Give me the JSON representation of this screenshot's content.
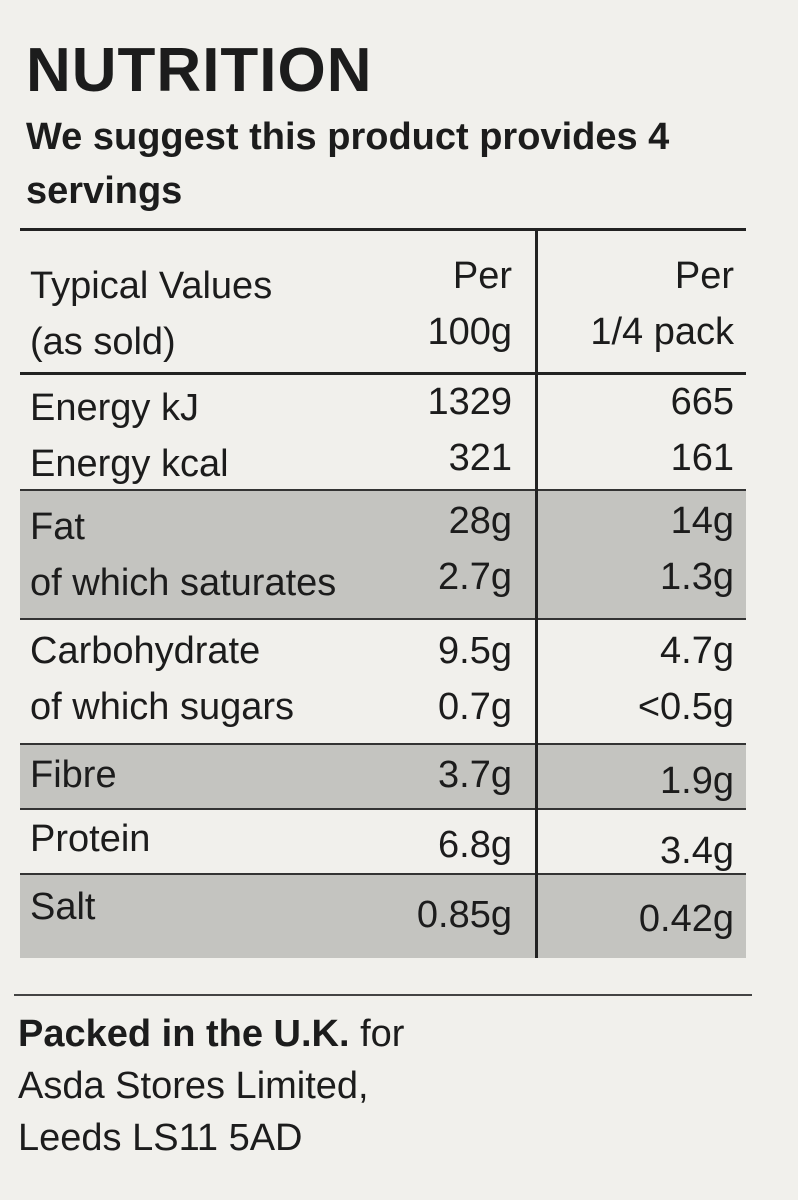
{
  "heading": {
    "title": "NUTRITION",
    "subtitle": "We suggest this product provides 4 servings"
  },
  "table": {
    "header": {
      "col1_line1": "Typical Values",
      "col1_line2": "(as sold)",
      "col2_line1": "Per",
      "col2_line2": "100g",
      "col3_line1": "Per",
      "col3_line2": "1/4 pack"
    },
    "rows": [
      {
        "name": "Energy kJ",
        "per100g": "1329",
        "perpack": "665"
      },
      {
        "name": "Energy kcal",
        "per100g": "321",
        "perpack": "161"
      },
      {
        "name": "Fat",
        "per100g": "28g",
        "perpack": "14g"
      },
      {
        "name": "of which saturates",
        "per100g": "2.7g",
        "perpack": "1.3g"
      },
      {
        "name": "Carbohydrate",
        "per100g": "9.5g",
        "perpack": "4.7g"
      },
      {
        "name": "of which sugars",
        "per100g": "0.7g",
        "perpack": "<0.5g"
      },
      {
        "name": "Fibre",
        "per100g": "3.7g",
        "perpack": "1.9g"
      },
      {
        "name": "Protein",
        "per100g": "6.8g",
        "perpack": "3.4g"
      },
      {
        "name": "Salt",
        "per100g": "0.85g",
        "perpack": "0.42g"
      }
    ]
  },
  "footer": {
    "packed_bold": "Packed in the U.K.",
    "packed_rest": " for",
    "line2": "Asda Stores Limited,",
    "line3": "Leeds LS11 5AD"
  }
}
